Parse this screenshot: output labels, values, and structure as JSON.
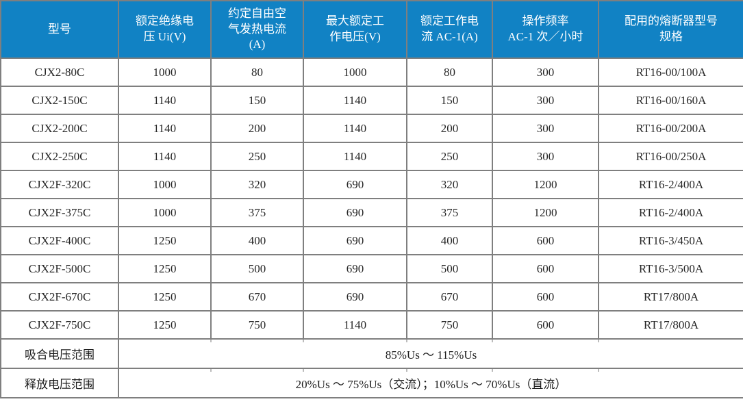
{
  "table": {
    "header_bg": "#1182c4",
    "header_text_color": "#ffffff",
    "border_color": "#7f7f7f",
    "columns": [
      {
        "label": "型号"
      },
      {
        "label": "额定绝缘电\n压 Ui(V)"
      },
      {
        "label": "约定自由空\n气发热电流\n(A)"
      },
      {
        "label": "最大额定工\n作电压(V)"
      },
      {
        "label": "额定工作电\n流 AC-1(A)"
      },
      {
        "label": "操作频率\nAC-1 次／小时"
      },
      {
        "label": "配用的熔断器型号\n规格"
      }
    ],
    "rows": [
      [
        "CJX2-80C",
        "1000",
        "80",
        "1000",
        "80",
        "300",
        "RT16-00/100A"
      ],
      [
        "CJX2-150C",
        "1140",
        "150",
        "1140",
        "150",
        "300",
        "RT16-00/160A"
      ],
      [
        "CJX2-200C",
        "1140",
        "200",
        "1140",
        "200",
        "300",
        "RT16-00/200A"
      ],
      [
        "CJX2-250C",
        "1140",
        "250",
        "1140",
        "250",
        "300",
        "RT16-00/250A"
      ],
      [
        "CJX2F-320C",
        "1000",
        "320",
        "690",
        "320",
        "1200",
        "RT16-2/400A"
      ],
      [
        "CJX2F-375C",
        "1000",
        "375",
        "690",
        "375",
        "1200",
        "RT16-2/400A"
      ],
      [
        "CJX2F-400C",
        "1250",
        "400",
        "690",
        "400",
        "600",
        "RT16-3/450A"
      ],
      [
        "CJX2F-500C",
        "1250",
        "500",
        "690",
        "500",
        "600",
        "RT16-3/500A"
      ],
      [
        "CJX2F-670C",
        "1250",
        "670",
        "690",
        "670",
        "600",
        "RT17/800A"
      ],
      [
        "CJX2F-750C",
        "1250",
        "750",
        "1140",
        "750",
        "600",
        "RT17/800A"
      ]
    ],
    "footer_rows": [
      {
        "label": "吸合电压范围",
        "value": "85%Us ～ 115%Us"
      },
      {
        "label": "释放电压范围",
        "value": "20%Us ～ 75%Us（交流）；10%Us ～ 70%Us（直流）"
      }
    ]
  }
}
